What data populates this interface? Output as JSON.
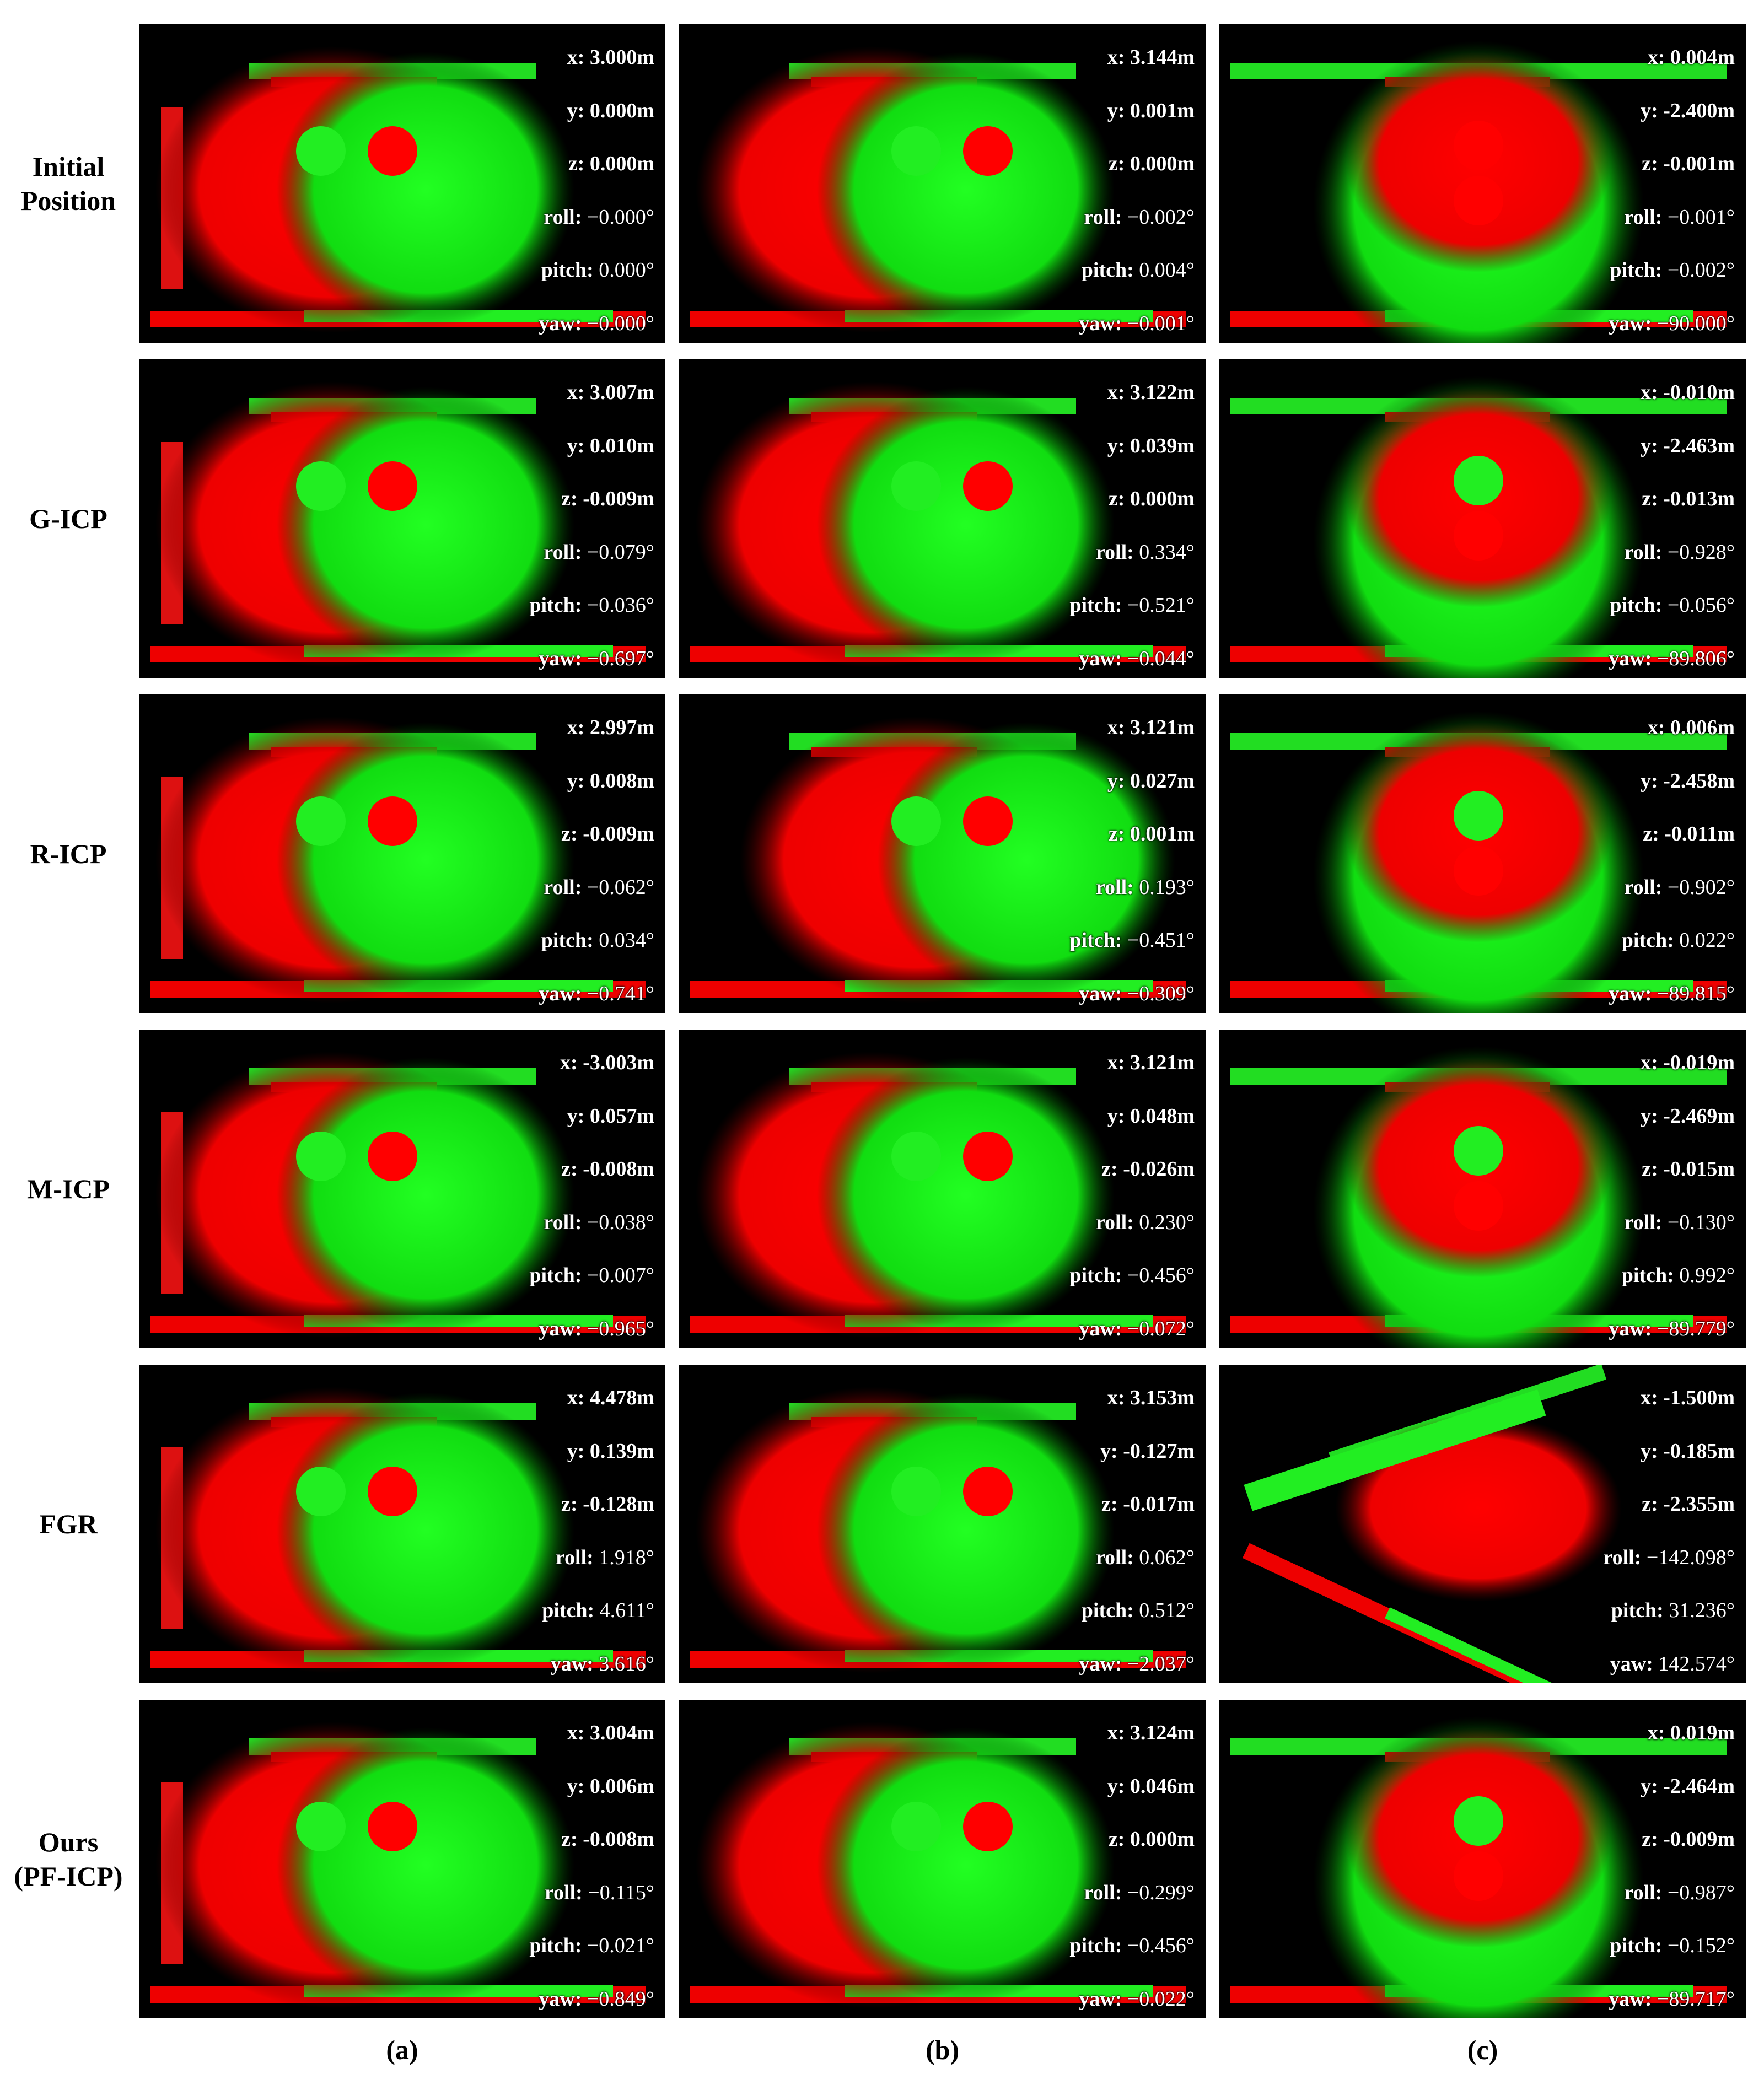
{
  "columns": [
    "(a)",
    "(b)",
    "(c)"
  ],
  "param_labels": [
    "x:",
    "y:",
    "z:",
    "roll:",
    "pitch:",
    "yaw:"
  ],
  "rows": [
    {
      "label": [
        "Initial",
        "Position"
      ],
      "cells": [
        [
          "3.000m",
          "0.000m",
          "0.000m",
          "−0.000°",
          "0.000°",
          "−0.000°"
        ],
        [
          "3.144m",
          "0.001m",
          "0.000m",
          "−0.002°",
          "0.004°",
          "−0.001°"
        ],
        [
          "0.004m",
          "-2.400m",
          "-0.001m",
          "−0.001°",
          "−0.002°",
          "−90.000°"
        ]
      ]
    },
    {
      "label": [
        "G-ICP"
      ],
      "cells": [
        [
          "3.007m",
          "0.010m",
          "-0.009m",
          "−0.079°",
          "−0.036°",
          "−0.697°"
        ],
        [
          "3.122m",
          "0.039m",
          "0.000m",
          "0.334°",
          "−0.521°",
          "−0.044°"
        ],
        [
          "-0.010m",
          "-2.463m",
          "-0.013m",
          "−0.928°",
          "−0.056°",
          "−89.806°"
        ]
      ]
    },
    {
      "label": [
        "R-ICP"
      ],
      "cells": [
        [
          "2.997m",
          "0.008m",
          "-0.009m",
          "−0.062°",
          "0.034°",
          "−0.741°"
        ],
        [
          "3.121m",
          "0.027m",
          "0.001m",
          "0.193°",
          "−0.451°",
          "−0.309°"
        ],
        [
          "0.006m",
          "-2.458m",
          "-0.011m",
          "−0.902°",
          "0.022°",
          "−89.815°"
        ]
      ]
    },
    {
      "label": [
        "M-ICP"
      ],
      "cells": [
        [
          "-3.003m",
          "0.057m",
          "-0.008m",
          "−0.038°",
          "−0.007°",
          "−0.965°"
        ],
        [
          "3.121m",
          "0.048m",
          "-0.026m",
          "0.230°",
          "−0.456°",
          "−0.072°"
        ],
        [
          "-0.019m",
          "-2.469m",
          "-0.015m",
          "−0.130°",
          "0.992°",
          "−89.779°"
        ]
      ]
    },
    {
      "label": [
        "FGR"
      ],
      "cells": [
        [
          "4.478m",
          "0.139m",
          "-0.128m",
          "1.918°",
          "4.611°",
          "3.616°"
        ],
        [
          "3.153m",
          "-0.127m",
          "-0.017m",
          "0.062°",
          "0.512°",
          "−2.037°"
        ],
        [
          "-1.500m",
          "-0.185m",
          "-2.355m",
          "−142.098°",
          "31.236°",
          "142.574°"
        ]
      ]
    },
    {
      "label": [
        "Ours",
        "(PF-ICP)"
      ],
      "cells": [
        [
          "3.004m",
          "0.006m",
          "-0.008m",
          "−0.115°",
          "−0.021°",
          "−0.849°"
        ],
        [
          "3.124m",
          "0.046m",
          "0.000m",
          "−0.299°",
          "−0.456°",
          "−0.022°"
        ],
        [
          "0.019m",
          "-2.464m",
          "-0.009m",
          "−0.987°",
          "−0.152°",
          "−89.717°"
        ]
      ]
    }
  ]
}
